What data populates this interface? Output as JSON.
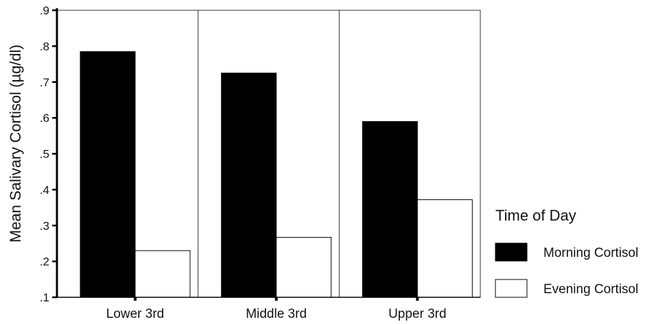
{
  "chart_data": {
    "type": "bar",
    "categories": [
      "Lower 3rd",
      "Middle 3rd",
      "Upper 3rd"
    ],
    "series": [
      {
        "name": "Morning Cortisol",
        "values": [
          0.785,
          0.725,
          0.59
        ],
        "color": "#000000"
      },
      {
        "name": "Evening Cortisol",
        "values": [
          0.23,
          0.267,
          0.372
        ],
        "color": "#ffffff"
      }
    ],
    "ylabel": "Mean Salivary Cortisol (µg/dl)",
    "xlabel": "",
    "ylim": [
      0.1,
      0.9
    ],
    "yticks": [
      0.1,
      0.2,
      0.3,
      0.4,
      0.5,
      0.6,
      0.7,
      0.8,
      0.9
    ],
    "ytick_labels": [
      ".1",
      ".2",
      ".3",
      ".4",
      ".5",
      ".6",
      ".7",
      ".8",
      ".9"
    ],
    "legend": {
      "title": "Time of Day",
      "placement": "right"
    },
    "grid": false
  }
}
